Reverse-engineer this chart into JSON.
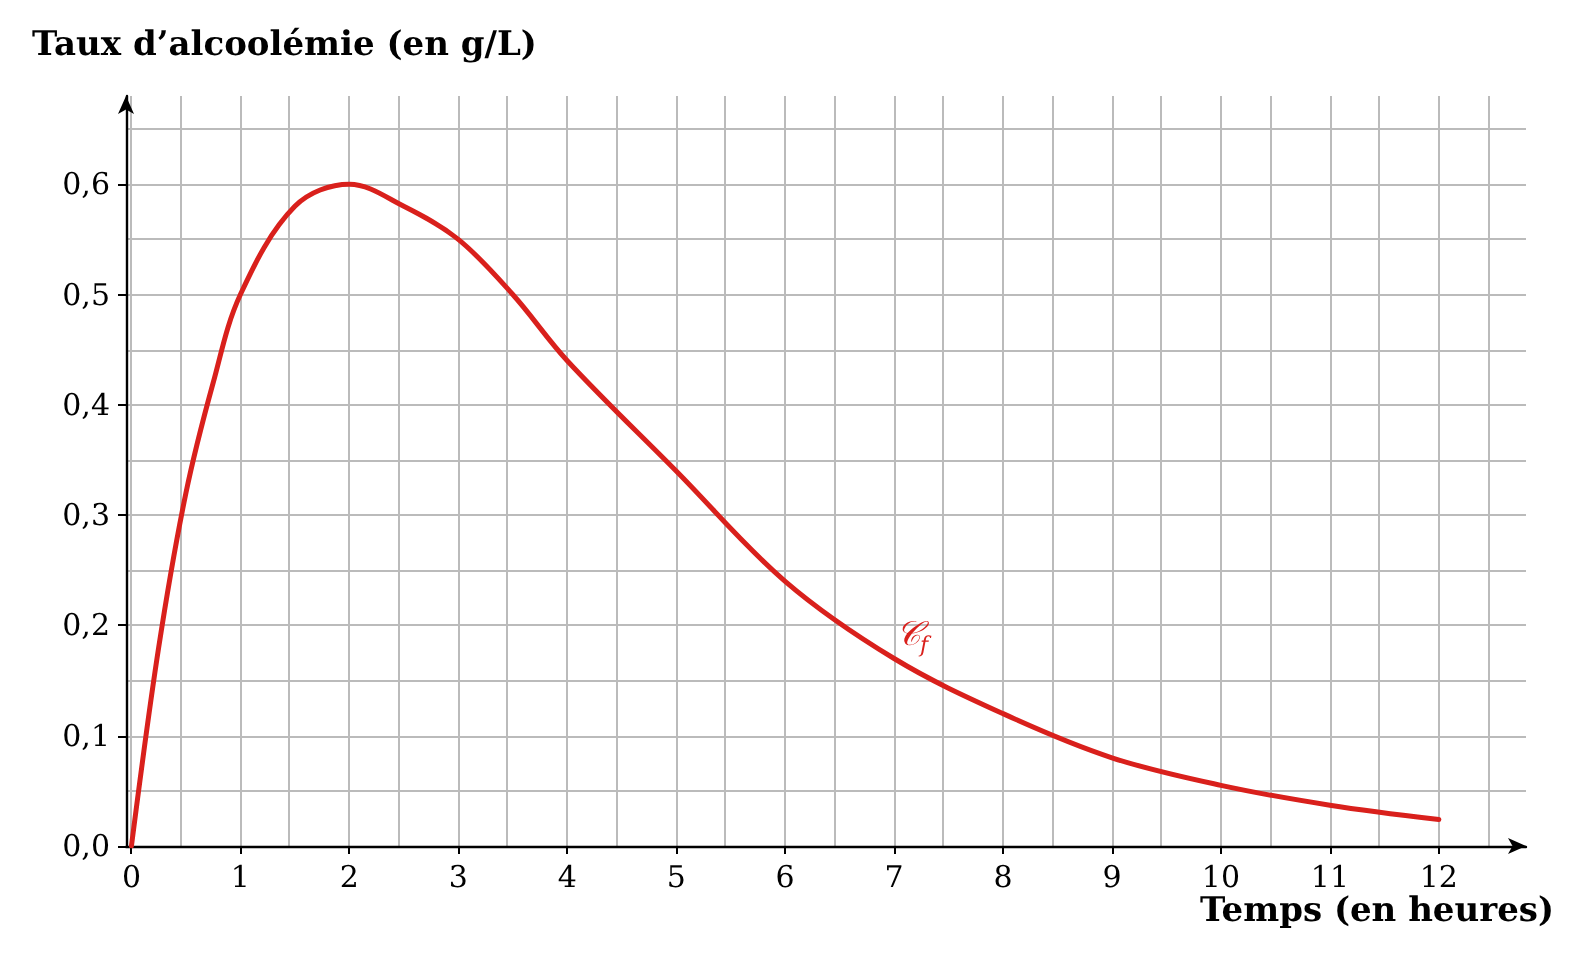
{
  "chart_data": {
    "type": "line",
    "xlabel": "Temps (en heures)",
    "ylabel": "Taux d’alcoolémie (en g/L)",
    "x": [
      0,
      0.25,
      0.5,
      0.75,
      1,
      1.5,
      2,
      2.5,
      3,
      3.5,
      4,
      5,
      6,
      7,
      8,
      9,
      10,
      11,
      12
    ],
    "series": [
      {
        "name": "𝒞$_{f}$",
        "color": "#d9201c",
        "values": [
          0,
          0.18,
          0.32,
          0.42,
          0.5,
          0.58,
          0.6,
          0.58,
          0.55,
          0.5,
          0.44,
          0.34,
          0.24,
          0.17,
          0.12,
          0.08,
          0.055,
          0.037,
          0.024
        ]
      }
    ],
    "xlim": [
      -0.05,
      12.8
    ],
    "ylim": [
      0,
      0.68
    ],
    "xticks": [
      0,
      1,
      2,
      3,
      4,
      5,
      6,
      7,
      8,
      9,
      10,
      11,
      12
    ],
    "yticks": [
      {
        "value": 0,
        "label": "0,0"
      },
      {
        "value": 0.1,
        "label": "0,1"
      },
      {
        "value": 0.2,
        "label": "0,2"
      },
      {
        "value": 0.3,
        "label": "0,3"
      },
      {
        "value": 0.4,
        "label": "0,4"
      },
      {
        "value": 0.5,
        "label": "0,5"
      },
      {
        "value": 0.6,
        "label": "0,6"
      }
    ],
    "grid": true,
    "marker": "none",
    "line_style": "solid",
    "legend": false
  }
}
